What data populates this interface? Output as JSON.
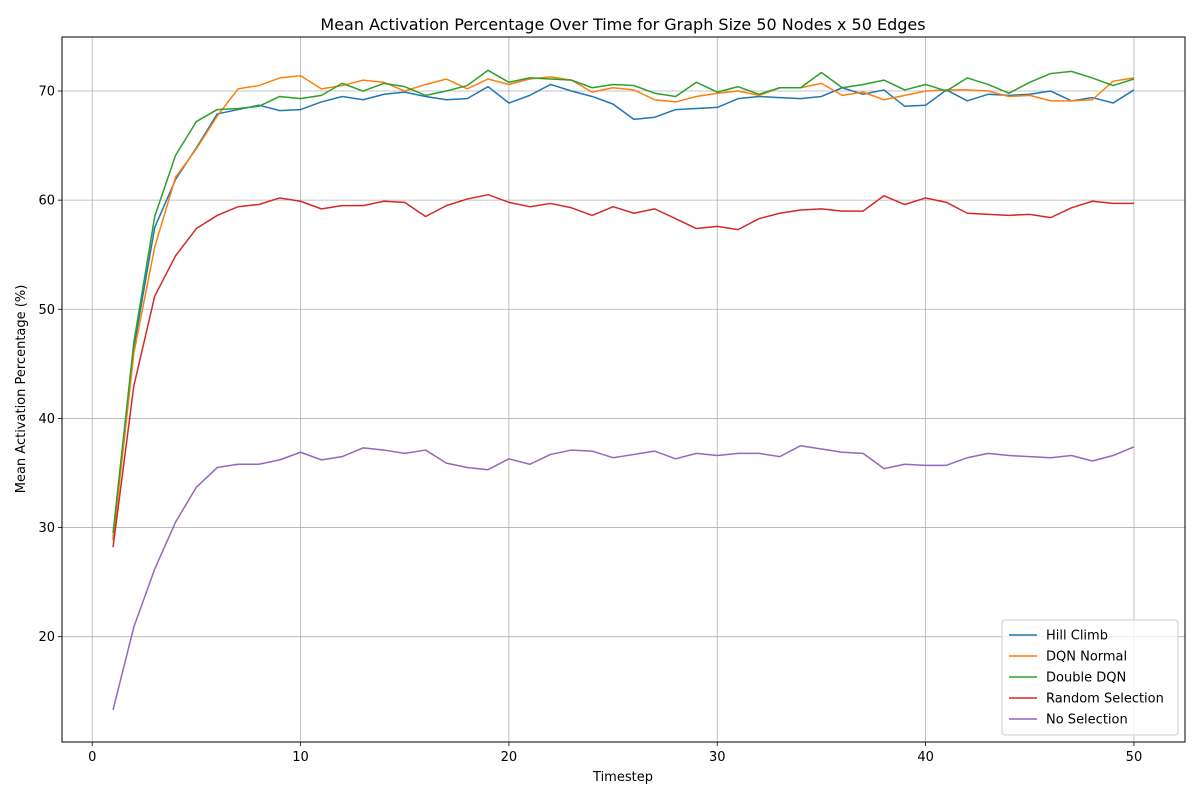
{
  "chart_data": {
    "type": "line",
    "title": "Mean Activation Percentage Over Time for Graph Size 50 Nodes x 50 Edges",
    "xlabel": "Timestep",
    "ylabel": "Mean Activation Percentage (%)",
    "xlim": [
      -1.45,
      52.45
    ],
    "ylim": [
      10.35,
      74.95
    ],
    "xticks": [
      0,
      10,
      20,
      30,
      40,
      50
    ],
    "yticks": [
      20,
      30,
      40,
      50,
      60,
      70
    ],
    "grid": true,
    "legend_position": "bottom-right",
    "x": [
      1,
      2,
      3,
      4,
      5,
      6,
      7,
      8,
      9,
      10,
      11,
      12,
      13,
      14,
      15,
      16,
      17,
      18,
      19,
      20,
      21,
      22,
      23,
      24,
      25,
      26,
      27,
      28,
      29,
      30,
      31,
      32,
      33,
      34,
      35,
      36,
      37,
      38,
      39,
      40,
      41,
      42,
      43,
      44,
      45,
      46,
      47,
      48,
      49,
      50
    ],
    "series": [
      {
        "name": "Hill Climb",
        "color": "#1f77b4",
        "values": [
          29.0,
          46.5,
          57.5,
          61.9,
          64.8,
          67.9,
          68.3,
          68.7,
          68.2,
          68.3,
          69.0,
          69.5,
          69.2,
          69.7,
          69.9,
          69.5,
          69.2,
          69.3,
          70.4,
          68.9,
          69.6,
          70.6,
          70.0,
          69.5,
          68.8,
          67.4,
          67.6,
          68.3,
          68.4,
          68.5,
          69.3,
          69.5,
          69.4,
          69.3,
          69.5,
          70.3,
          69.7,
          70.1,
          68.6,
          68.7,
          70.1,
          69.1,
          69.7,
          69.6,
          69.7,
          70.0,
          69.1,
          69.4,
          68.9,
          70.1
        ]
      },
      {
        "name": "DQN Normal",
        "color": "#ff7f0e",
        "values": [
          28.8,
          46.0,
          55.7,
          62.1,
          64.7,
          67.7,
          70.2,
          70.5,
          71.2,
          71.4,
          70.2,
          70.5,
          71.0,
          70.8,
          70.0,
          70.6,
          71.1,
          70.2,
          71.1,
          70.6,
          71.1,
          71.3,
          71.0,
          69.9,
          70.3,
          70.1,
          69.2,
          69.0,
          69.5,
          69.8,
          70.0,
          69.6,
          70.3,
          70.3,
          70.7,
          69.6,
          69.9,
          69.2,
          69.6,
          70.0,
          70.1,
          70.1,
          70.0,
          69.5,
          69.6,
          69.1,
          69.1,
          69.2,
          70.9,
          71.2
        ]
      },
      {
        "name": "Double DQN",
        "color": "#2ca02c",
        "values": [
          29.5,
          47.0,
          58.5,
          64.1,
          67.2,
          68.3,
          68.4,
          68.6,
          69.5,
          69.3,
          69.6,
          70.7,
          70.0,
          70.7,
          70.4,
          69.6,
          70.0,
          70.5,
          71.9,
          70.8,
          71.2,
          71.1,
          71.0,
          70.3,
          70.6,
          70.5,
          69.8,
          69.5,
          70.8,
          69.9,
          70.4,
          69.7,
          70.3,
          70.3,
          71.7,
          70.3,
          70.6,
          71.0,
          70.1,
          70.6,
          70.0,
          71.2,
          70.6,
          69.8,
          70.8,
          71.6,
          71.8,
          71.2,
          70.5,
          71.1
        ]
      },
      {
        "name": "Random Selection",
        "color": "#d62728",
        "values": [
          28.2,
          43.0,
          51.2,
          54.9,
          57.4,
          58.6,
          59.4,
          59.6,
          60.2,
          59.9,
          59.2,
          59.5,
          59.5,
          59.9,
          59.8,
          58.5,
          59.5,
          60.1,
          60.5,
          59.8,
          59.4,
          59.7,
          59.3,
          58.6,
          59.4,
          58.8,
          59.2,
          58.3,
          57.4,
          57.6,
          57.3,
          58.3,
          58.8,
          59.1,
          59.2,
          59.0,
          59.0,
          60.4,
          59.6,
          60.2,
          59.8,
          58.8,
          58.7,
          58.6,
          58.7,
          58.4,
          59.3,
          59.9,
          59.7,
          59.7
        ]
      },
      {
        "name": "No Selection",
        "color": "#9467bd",
        "values": [
          13.3,
          20.9,
          26.2,
          30.5,
          33.7,
          35.5,
          35.8,
          35.8,
          36.2,
          36.9,
          36.2,
          36.5,
          37.3,
          37.1,
          36.8,
          37.1,
          35.9,
          35.5,
          35.3,
          36.3,
          35.8,
          36.7,
          37.1,
          37.0,
          36.4,
          36.7,
          37.0,
          36.3,
          36.8,
          36.6,
          36.8,
          36.8,
          36.5,
          37.5,
          37.2,
          36.9,
          36.8,
          35.4,
          35.8,
          35.7,
          35.7,
          36.4,
          36.8,
          36.6,
          36.5,
          36.4,
          36.6,
          36.1,
          36.6,
          37.4
        ]
      }
    ]
  }
}
